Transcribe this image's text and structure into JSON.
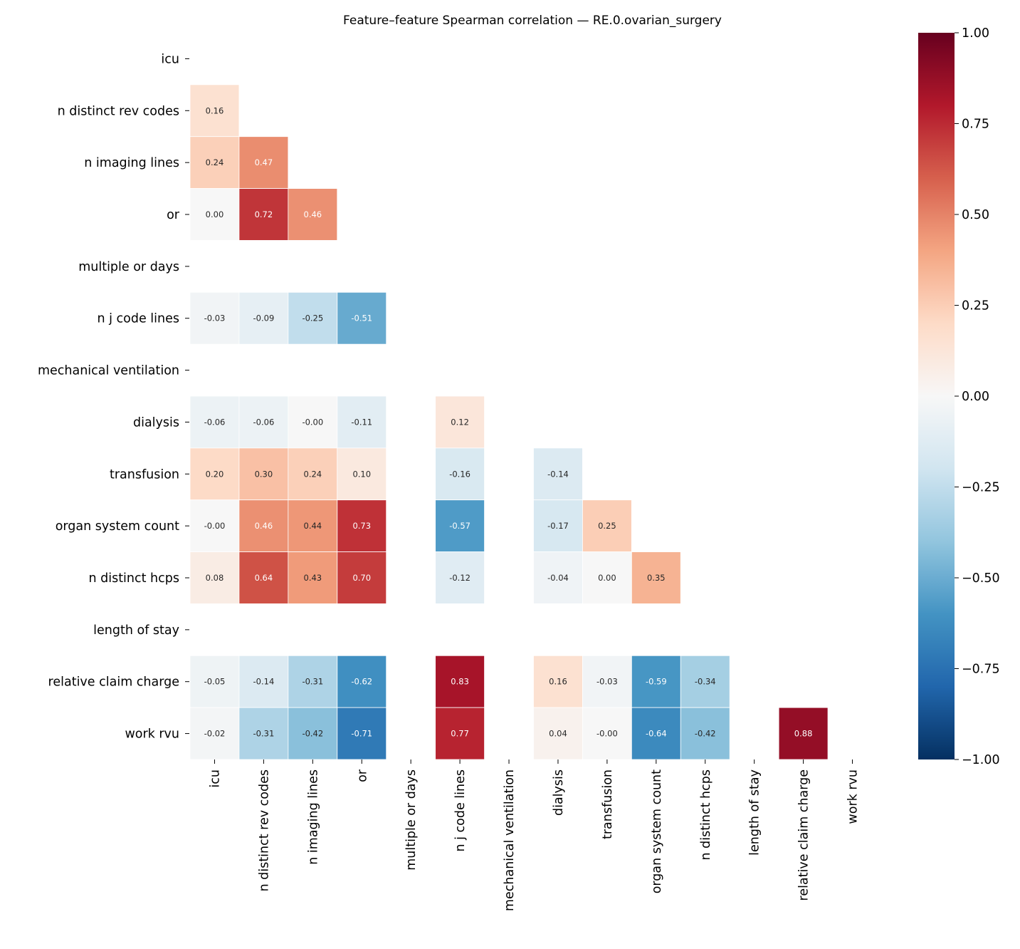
{
  "chart_data": {
    "type": "heatmap",
    "title": "Feature–feature Spearman correlation — RE.0.ovarian_surgery",
    "labels": [
      "icu",
      "n distinct rev codes",
      "n imaging lines",
      "or",
      "multiple or days",
      "n j code lines",
      "mechanical ventilation",
      "dialysis",
      "transfusion",
      "organ system count",
      "n distinct hcps",
      "length of stay",
      "relative claim charge",
      "work rvu"
    ],
    "matrix": [
      [],
      [
        0.16
      ],
      [
        0.24,
        0.47
      ],
      [
        0.0,
        0.72,
        0.46
      ],
      [
        null,
        null,
        null,
        null
      ],
      [
        -0.03,
        -0.09,
        -0.25,
        -0.51,
        null
      ],
      [
        null,
        null,
        null,
        null,
        null,
        null
      ],
      [
        -0.06,
        -0.06,
        -0.0,
        -0.11,
        null,
        0.12,
        null
      ],
      [
        0.2,
        0.3,
        0.24,
        0.1,
        null,
        -0.16,
        null,
        -0.14
      ],
      [
        -0.0,
        0.46,
        0.44,
        0.73,
        null,
        -0.57,
        null,
        -0.17,
        0.25
      ],
      [
        0.08,
        0.64,
        0.43,
        0.7,
        null,
        -0.12,
        null,
        -0.04,
        0.0,
        0.35
      ],
      [
        null,
        null,
        null,
        null,
        null,
        null,
        null,
        null,
        null,
        null,
        null
      ],
      [
        -0.05,
        -0.14,
        -0.31,
        -0.62,
        null,
        0.83,
        null,
        0.16,
        -0.03,
        -0.59,
        -0.34,
        null
      ],
      [
        -0.02,
        -0.31,
        -0.42,
        -0.71,
        null,
        0.77,
        null,
        0.04,
        -0.0,
        -0.64,
        -0.42,
        null,
        0.88
      ]
    ],
    "mask": "upper triangle and diagonal",
    "colormap": "RdBu_r",
    "vmin": -1,
    "vmax": 1,
    "colorbar_ticks": [
      "1.00",
      "0.75",
      "0.50",
      "0.25",
      "0.00",
      "−0.25",
      "−0.50",
      "−0.75",
      "−1.00"
    ],
    "colorbar_values": [
      1,
      0.75,
      0.5,
      0.25,
      0,
      -0.25,
      -0.5,
      -0.75,
      -1
    ]
  }
}
